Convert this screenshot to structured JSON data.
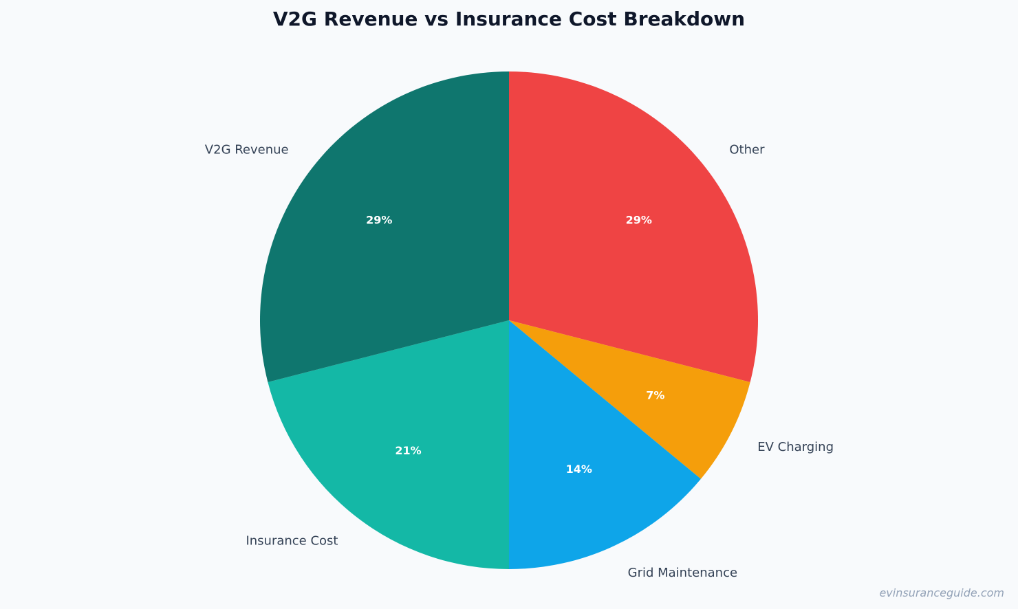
{
  "chart_data": {
    "type": "pie",
    "title": "V2G Revenue vs Insurance Cost Breakdown",
    "start_angle_deg": 90,
    "direction": "clockwise",
    "slices": [
      {
        "label": "Other",
        "value": 29,
        "pct_label": "29%",
        "color": "#ef4444"
      },
      {
        "label": "EV Charging",
        "value": 7,
        "pct_label": "7%",
        "color": "#f59e0b"
      },
      {
        "label": "Grid Maintenance",
        "value": 14,
        "pct_label": "14%",
        "color": "#0ea5e9"
      },
      {
        "label": "Insurance Cost",
        "value": 21,
        "pct_label": "21%",
        "color": "#14b8a6"
      },
      {
        "label": "V2G Revenue",
        "value": 29,
        "pct_label": "29%",
        "color": "#0f766e"
      }
    ]
  },
  "watermark": "evinsuranceguide.com"
}
